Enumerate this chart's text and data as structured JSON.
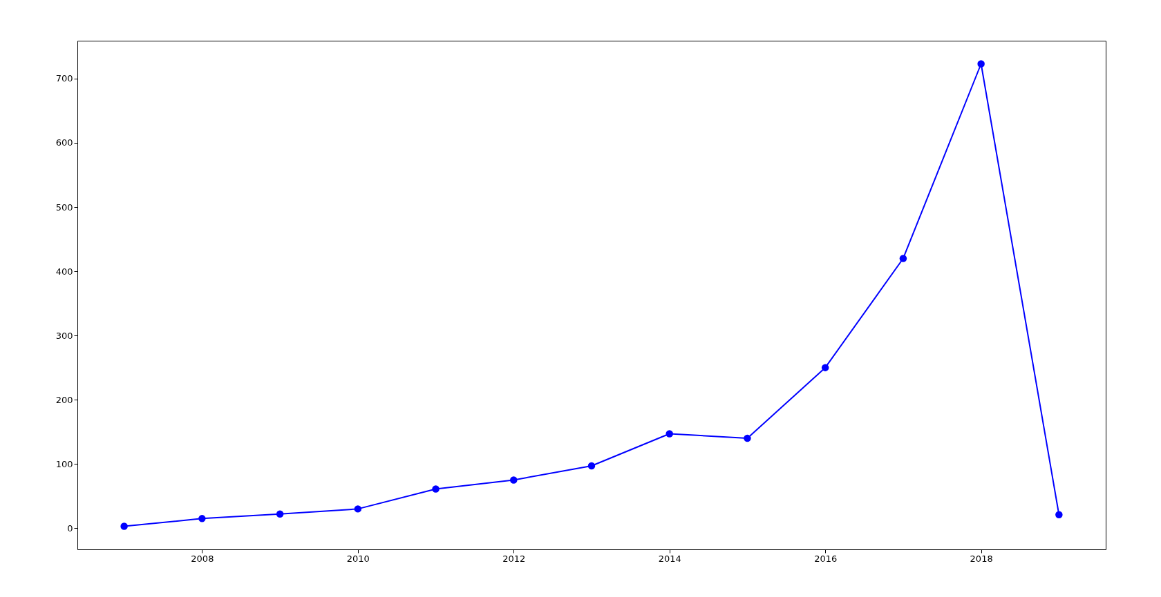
{
  "chart_data": {
    "type": "line",
    "x": [
      2007,
      2008,
      2009,
      2010,
      2011,
      2012,
      2013,
      2014,
      2015,
      2016,
      2017,
      2018,
      2019
    ],
    "series": [
      {
        "color": "#0000ff",
        "values": [
          3,
          15,
          22,
          30,
          61,
          75,
          97,
          147,
          140,
          250,
          420,
          723,
          21
        ]
      }
    ],
    "xlim": [
      2006.4,
      2019.6
    ],
    "xticks": [
      2008,
      2010,
      2012,
      2014,
      2016,
      2018
    ],
    "ylim": [
      -33,
      759
    ],
    "yticks": [
      0,
      100,
      200,
      300,
      400,
      500,
      600,
      700
    ],
    "grid": false,
    "marker": "circle",
    "line_style": "solid"
  }
}
